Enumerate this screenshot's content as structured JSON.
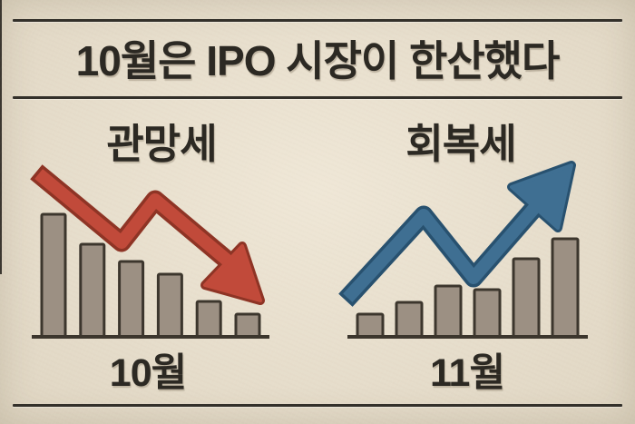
{
  "page": {
    "title": "10월은 IPO 시장이 한산했다"
  },
  "colors": {
    "background": "#ece2ce",
    "ink": "#2c2923",
    "rule_line": "#33302a",
    "bar_fill": "#9c9083",
    "bar_stroke": "#3c362d",
    "down_arrow": "#c14a3a",
    "down_arrow_outline": "#8e3425",
    "up_arrow": "#3f6f92",
    "up_arrow_outline": "#28516f"
  },
  "panels": [
    {
      "subtitle": "관망세",
      "month": "10월",
      "trend": "declining"
    },
    {
      "subtitle": "회복세",
      "month": "11월",
      "trend": "rising"
    }
  ],
  "chart_data": [
    {
      "type": "bar",
      "title": "관망세",
      "xlabel": "10월",
      "values": [
        135,
        102,
        83,
        69,
        39,
        25
      ],
      "unit": "relative height (no axis scale shown)",
      "bar_count": 6,
      "annotation": "red zigzag arrow trending down-right over bars",
      "axis": "baseline only, no ticks or gridlines"
    },
    {
      "type": "bar",
      "title": "회복세",
      "xlabel": "11월",
      "values": [
        25,
        38,
        56,
        52,
        86,
        108
      ],
      "unit": "relative height (no axis scale shown)",
      "bar_count": 6,
      "annotation": "blue zigzag arrow trending up-right over bars",
      "axis": "baseline only, no ticks or gridlines"
    }
  ]
}
